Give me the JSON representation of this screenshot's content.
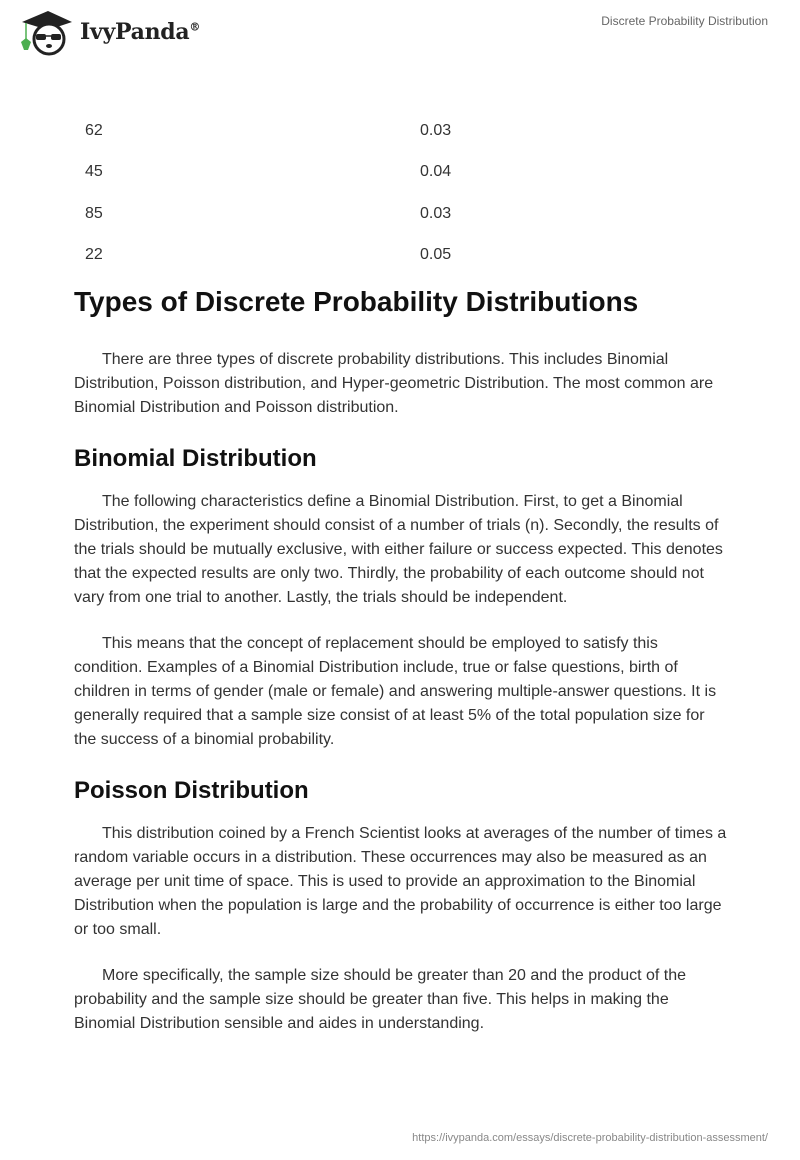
{
  "header": {
    "logo_text": "IvyPanda",
    "logo_mark": "®",
    "doc_title": "Discrete Probability Distribution"
  },
  "table": {
    "rows": [
      [
        "62",
        "0.03"
      ],
      [
        "45",
        "0.04"
      ],
      [
        "85",
        "0.03"
      ],
      [
        "22",
        "0.05"
      ]
    ]
  },
  "sections": [
    {
      "heading": "Types of Discrete Probability Distributions",
      "paragraphs": [
        "There are three types of discrete probability distributions. This includes Binomial Distribution, Poisson distribution, and Hyper-geometric Distribution. The most common are Binomial Distribution and Poisson distribution."
      ]
    },
    {
      "heading": "Binomial Distribution",
      "paragraphs": [
        "The following characteristics define a Binomial Distribution. First, to get a Binomial Distribution, the experiment should consist of a number of trials (n). Secondly, the results of the trials should be mutually exclusive, with either failure or success expected. This denotes that the expected results are only two. Thirdly, the probability of each outcome should not vary from one trial to another. Lastly, the trials should be independent.",
        "This means that the concept of replacement should be employed to satisfy this condition. Examples of a Binomial Distribution include, true or false questions, birth of children in terms of gender (male or female) and answering multiple-answer questions. It is generally required that a sample size consist of at least 5% of the total population size for the success of a binomial probability."
      ]
    },
    {
      "heading": "Poisson Distribution",
      "paragraphs": [
        "This distribution coined by a French Scientist looks at averages of the number of times a random variable occurs in a distribution. These occurrences may also be measured as an average per unit time of space. This is used to provide an approximation to the Binomial Distribution when the population is large and the probability of occurrence is either too large or too small.",
        "More specifically, the sample size should be greater than 20 and the product of the probability and the sample size should be greater than five. This helps in making the Binomial Distribution sensible and aides in understanding."
      ]
    }
  ],
  "footer": {
    "url": "https://ivypanda.com/essays/discrete-probability-distribution-assessment/"
  }
}
